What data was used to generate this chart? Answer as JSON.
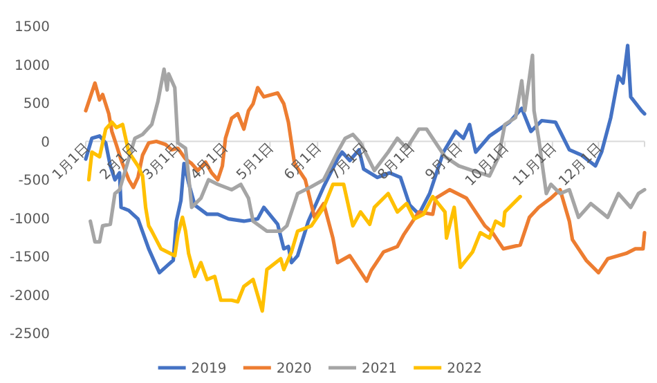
{
  "chart_data": {
    "type": "line",
    "legend": "bottom",
    "grid": false,
    "marker": "none",
    "line_style": "solid",
    "xlim": [
      "--01-01",
      "--12-31"
    ],
    "ylim": [
      -2500,
      1500
    ],
    "yticks": [
      -2500,
      -2000,
      -1500,
      -1000,
      -500,
      0,
      500,
      1000,
      1500
    ],
    "xticks": [
      {
        "value": "--01-01",
        "label": "1月1日"
      },
      {
        "value": "--02-01",
        "label": "2月1日"
      },
      {
        "value": "--03-01",
        "label": "3月1日"
      },
      {
        "value": "--04-01",
        "label": "4月1日"
      },
      {
        "value": "--05-01",
        "label": "5月1日"
      },
      {
        "value": "--06-01",
        "label": "6月1日"
      },
      {
        "value": "--07-01",
        "label": "7月1日"
      },
      {
        "value": "--08-01",
        "label": "8月1日"
      },
      {
        "value": "--09-01",
        "label": "9月1日"
      },
      {
        "value": "--10-01",
        "label": "10月1日"
      },
      {
        "value": "--11-01",
        "label": "11月1日"
      },
      {
        "value": "--12-01",
        "label": "12月1日"
      }
    ],
    "series": [
      {
        "name": "2019",
        "color": "#4472c4",
        "x": [
          "--01-01",
          "--01-05",
          "--01-10",
          "--01-14",
          "--01-17",
          "--01-20",
          "--01-23",
          "--01-24",
          "--01-29",
          "--02-04",
          "--02-11",
          "--02-15",
          "--02-18",
          "--02-23",
          "--02-27",
          "--03-01",
          "--03-04",
          "--03-06",
          "--03-09",
          "--03-13",
          "--03-21",
          "--03-28",
          "--04-04",
          "--04-14",
          "--04-23",
          "--04-27",
          "--05-06",
          "--05-10",
          "--05-13",
          "--05-15",
          "--05-19",
          "--05-26",
          "--06-05",
          "--06-14",
          "--06-17",
          "--06-22",
          "--06-28",
          "--07-01",
          "--07-10",
          "--07-18",
          "--07-25",
          "--07-31",
          "--08-06",
          "--08-13",
          "--08-22",
          "--08-30",
          "--09-04",
          "--09-08",
          "--09-12",
          "--09-21",
          "--10-04",
          "--10-12",
          "--10-18",
          "--10-25",
          "--11-03",
          "--11-12",
          "--11-20",
          "--11-29",
          "--12-03",
          "--12-09",
          "--12-14",
          "--12-17",
          "--12-20",
          "--12-22",
          "--12-29",
          "--12-31"
        ],
        "values": [
          -230,
          40,
          70,
          -20,
          -320,
          -500,
          -410,
          -860,
          -900,
          -1010,
          -1400,
          -1580,
          -1710,
          -1620,
          -1550,
          -1040,
          -770,
          -290,
          -540,
          -830,
          -950,
          -950,
          -1010,
          -1040,
          -1010,
          -860,
          -1080,
          -1400,
          -1370,
          -1580,
          -1490,
          -1040,
          -590,
          -230,
          -140,
          -250,
          -110,
          -360,
          -470,
          -410,
          -470,
          -830,
          -950,
          -680,
          -140,
          130,
          40,
          220,
          -140,
          70,
          250,
          430,
          130,
          270,
          250,
          -110,
          -180,
          -320,
          -140,
          310,
          850,
          760,
          1250,
          580,
          400,
          360
        ]
      },
      {
        "name": "2020",
        "color": "#ed7d31",
        "x": [
          "--01-01",
          "--01-07",
          "--01-10",
          "--01-12",
          "--01-16",
          "--01-18",
          "--01-21",
          "--01-24",
          "--01-29",
          "--02-01",
          "--02-04",
          "--02-07",
          "--02-11",
          "--02-16",
          "--02-22",
          "--02-26",
          "--03-02",
          "--03-07",
          "--03-11",
          "--03-15",
          "--03-20",
          "--03-24",
          "--03-28",
          "--03-31",
          "--04-02",
          "--04-06",
          "--04-10",
          "--04-14",
          "--04-17",
          "--04-20",
          "--04-23",
          "--04-27",
          "--05-06",
          "--05-10",
          "--05-13",
          "--05-17",
          "--05-24",
          "--05-30",
          "--06-05",
          "--06-11",
          "--06-14",
          "--06-22",
          "--07-03",
          "--07-06",
          "--07-14",
          "--07-23",
          "--07-27",
          "--08-06",
          "--08-15",
          "--08-17",
          "--08-26",
          "--09-06",
          "--09-12",
          "--09-18",
          "--09-23",
          "--09-30",
          "--10-11",
          "--10-17",
          "--10-23",
          "--10-31",
          "--11-06",
          "--11-12",
          "--11-14",
          "--11-23",
          "--12-01",
          "--12-07",
          "--12-19",
          "--12-25",
          "--12-30",
          "--12-31"
        ],
        "values": [
          400,
          760,
          540,
          610,
          360,
          130,
          -50,
          -240,
          -500,
          -600,
          -470,
          -180,
          -20,
          0,
          -40,
          -110,
          -90,
          -230,
          -290,
          -380,
          -270,
          -410,
          -500,
          -320,
          40,
          300,
          360,
          160,
          400,
          490,
          700,
          580,
          630,
          490,
          250,
          -290,
          -500,
          -990,
          -810,
          -1260,
          -1580,
          -1490,
          -1820,
          -1680,
          -1440,
          -1370,
          -1220,
          -920,
          -950,
          -740,
          -630,
          -740,
          -920,
          -1100,
          -1190,
          -1400,
          -1350,
          -990,
          -860,
          -740,
          -630,
          -1040,
          -1280,
          -1550,
          -1710,
          -1530,
          -1460,
          -1400,
          -1400,
          -1190
        ]
      },
      {
        "name": "2021",
        "color": "#a5a5a5",
        "x": [
          "--01-04",
          "--01-07",
          "--01-10",
          "--01-12",
          "--01-17",
          "--01-20",
          "--01-23",
          "--02-02",
          "--02-07",
          "--02-13",
          "--02-17",
          "--02-21",
          "--02-23",
          "--02-24",
          "--02-28",
          "--03-02",
          "--03-07",
          "--03-09",
          "--03-11",
          "--03-17",
          "--03-22",
          "--03-28",
          "--04-06",
          "--04-12",
          "--04-17",
          "--04-20",
          "--04-29",
          "--05-08",
          "--05-12",
          "--05-16",
          "--05-19",
          "--05-28",
          "--06-05",
          "--06-14",
          "--06-19",
          "--06-24",
          "--06-29",
          "--07-08",
          "--07-17",
          "--07-23",
          "--07-29",
          "--08-06",
          "--08-11",
          "--08-17",
          "--08-23",
          "--09-01",
          "--09-10",
          "--09-21",
          "--09-27",
          "--10-01",
          "--10-08",
          "--10-12",
          "--10-14",
          "--10-19",
          "--10-20",
          "--10-23",
          "--10-28",
          "--10-31",
          "--11-06",
          "--11-12",
          "--11-18",
          "--11-26",
          "--12-07",
          "--12-14",
          "--12-22",
          "--12-27",
          "--12-31"
        ],
        "values": [
          -1040,
          -1310,
          -1310,
          -1100,
          -1080,
          -680,
          -630,
          40,
          90,
          220,
          520,
          940,
          670,
          880,
          700,
          -20,
          -90,
          -450,
          -860,
          -740,
          -500,
          -560,
          -630,
          -560,
          -740,
          -1040,
          -1170,
          -1170,
          -1100,
          -860,
          -680,
          -590,
          -500,
          -140,
          40,
          90,
          -20,
          -380,
          -140,
          40,
          -90,
          160,
          160,
          -20,
          -200,
          -320,
          -380,
          -450,
          -200,
          220,
          310,
          790,
          400,
          1120,
          400,
          40,
          -680,
          -560,
          -680,
          -630,
          -990,
          -810,
          -990,
          -680,
          -860,
          -680,
          -630
        ]
      },
      {
        "name": "2022",
        "color": "#ffc000",
        "x": [
          "--01-03",
          "--01-05",
          "--01-10",
          "--01-14",
          "--01-18",
          "--01-21",
          "--01-25",
          "--01-29",
          "--02-04",
          "--02-07",
          "--02-09",
          "--02-11",
          "--02-13",
          "--02-19",
          "--02-28",
          "--03-02",
          "--03-05",
          "--03-07",
          "--03-09",
          "--03-13",
          "--03-17",
          "--03-21",
          "--03-26",
          "--03-30",
          "--04-06",
          "--04-10",
          "--04-14",
          "--04-20",
          "--04-26",
          "--04-29",
          "--05-08",
          "--05-10",
          "--05-15",
          "--05-19",
          "--05-28",
          "--06-05",
          "--06-11",
          "--06-18",
          "--06-24",
          "--06-29",
          "--07-05",
          "--07-08",
          "--07-17",
          "--07-23",
          "--07-29",
          "--08-03",
          "--08-09",
          "--08-15",
          "--08-23",
          "--08-24",
          "--08-29",
          "--09-02",
          "--09-10",
          "--09-15",
          "--09-21",
          "--09-25",
          "--09-30",
          "--10-01",
          "--10-11"
        ],
        "values": [
          -500,
          -140,
          -200,
          160,
          250,
          180,
          220,
          -140,
          -320,
          -450,
          -860,
          -1100,
          -1170,
          -1400,
          -1490,
          -1220,
          -990,
          -1170,
          -1460,
          -1760,
          -1580,
          -1800,
          -1760,
          -2070,
          -2070,
          -2090,
          -1890,
          -1800,
          -2210,
          -1670,
          -1530,
          -1670,
          -1440,
          -1170,
          -1100,
          -860,
          -560,
          -560,
          -1100,
          -920,
          -1080,
          -860,
          -680,
          -920,
          -810,
          -1010,
          -950,
          -720,
          -920,
          -1260,
          -860,
          -1640,
          -1440,
          -1190,
          -1260,
          -1040,
          -1100,
          -920,
          -720
        ]
      }
    ]
  }
}
